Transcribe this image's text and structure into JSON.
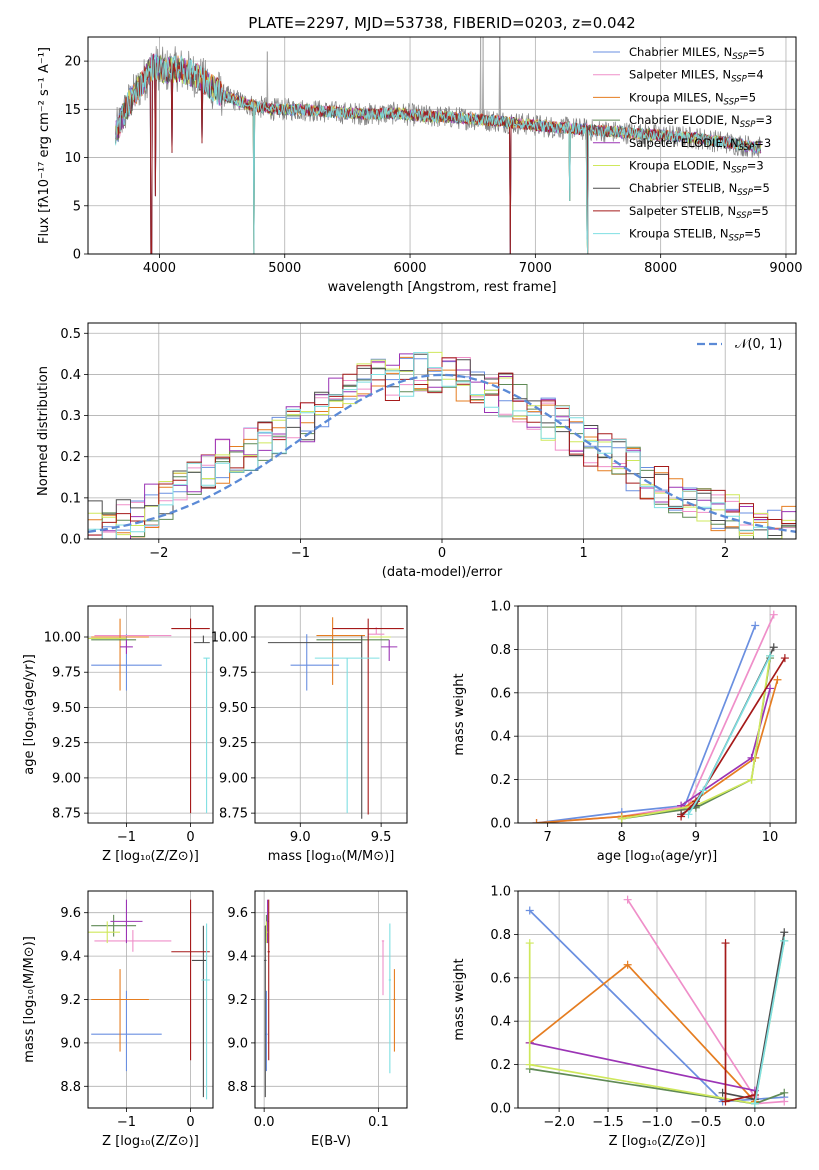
{
  "colors": [
    "#6a8fe0",
    "#ef8fc9",
    "#e57d21",
    "#5f8a55",
    "#9b34b5",
    "#cfe85c",
    "#4d4d4d",
    "#a51a1a",
    "#7fdfe2"
  ],
  "chart_data": [
    {
      "id": "spectrum",
      "type": "line",
      "title": "PLATE=2297, MJD=53738, FIBERID=0203, z=0.042",
      "xlabel": "wavelength [Angstrom, rest frame]",
      "ylabel": "Flux [fλ10⁻¹⁷ erg cm⁻² s⁻¹ A⁻¹]",
      "xlim": [
        3430,
        9080
      ],
      "ylim": [
        0,
        22.5
      ],
      "xticks": [
        "4000",
        "5000",
        "6000",
        "7000",
        "8000",
        "9000"
      ],
      "yticks": [
        "0",
        "5",
        "10",
        "15",
        "20"
      ],
      "legend_position": "upper-right",
      "series": [
        {
          "name": "Chabrier MILES, N",
          "sub": "SSP",
          "suffix": "=5"
        },
        {
          "name": "Salpeter MILES, N",
          "sub": "SSP",
          "suffix": "=4"
        },
        {
          "name": "Kroupa MILES, N",
          "sub": "SSP",
          "suffix": "=5"
        },
        {
          "name": "Chabrier ELODIE, N",
          "sub": "SSP",
          "suffix": "=3"
        },
        {
          "name": "Salpeter ELODIE, N",
          "sub": "SSP",
          "suffix": "=3"
        },
        {
          "name": "Kroupa ELODIE, N",
          "sub": "SSP",
          "suffix": "=3"
        },
        {
          "name": "Chabrier STELIB, N",
          "sub": "SSP",
          "suffix": "=5"
        },
        {
          "name": "Salpeter STELIB, N",
          "sub": "SSP",
          "suffix": "=5"
        },
        {
          "name": "Kroupa STELIB, N",
          "sub": "SSP",
          "suffix": "=5"
        }
      ],
      "continuum": {
        "x": [
          3650,
          3750,
          3850,
          3950,
          4050,
          4150,
          4300,
          4500,
          4700,
          4900,
          5100,
          5300,
          5500,
          5700,
          5900,
          6100,
          6300,
          6500,
          6700,
          6900,
          7100,
          7300,
          7500,
          7700,
          7900,
          8100,
          8300,
          8500,
          8700,
          8800
        ],
        "y": [
          12.5,
          15.5,
          17.5,
          19.5,
          19.0,
          19.2,
          18.5,
          16.5,
          15.5,
          15.0,
          15.0,
          14.8,
          14.6,
          14.5,
          14.6,
          14.3,
          14.2,
          14.0,
          13.8,
          13.5,
          13.2,
          13.0,
          12.8,
          12.6,
          12.4,
          12.2,
          12.0,
          11.6,
          11.2,
          11.0
        ]
      },
      "dips": [
        {
          "x": 3935,
          "y": 0.0
        },
        {
          "x": 3968,
          "y": 6.0
        },
        {
          "x": 4100,
          "y": 10.5
        },
        {
          "x": 4340,
          "y": 11.5
        },
        {
          "x": 4755,
          "y": 0.0
        },
        {
          "x": 6800,
          "y": 0.0
        },
        {
          "x": 7275,
          "y": 5.5
        },
        {
          "x": 7420,
          "y": 0.0
        },
        {
          "x": 7410,
          "y": 1.5
        }
      ],
      "spikes": [
        {
          "x": 6563,
          "y": 22.5
        },
        {
          "x": 6583,
          "y": 22.5
        },
        {
          "x": 6716,
          "y": 22.5
        },
        {
          "x": 4861,
          "y": 21.0
        }
      ]
    },
    {
      "id": "residuals",
      "type": "line",
      "xlabel": "(data-model)/error",
      "ylabel": "Normed distribution",
      "xlim": [
        -2.5,
        2.5
      ],
      "ylim": [
        0,
        0.525
      ],
      "xticks": [
        "−2",
        "−1",
        "0",
        "1",
        "2"
      ],
      "yticks": [
        "0.0",
        "0.1",
        "0.2",
        "0.3",
        "0.4",
        "0.5"
      ],
      "legend": "𝒩(0, 1)",
      "legend_position": "upper-right",
      "bin_width": 0.1,
      "bin_start": -2.5,
      "hist_center": [
        0.04,
        0.04,
        0.05,
        0.06,
        0.08,
        0.1,
        0.13,
        0.15,
        0.17,
        0.19,
        0.2,
        0.22,
        0.24,
        0.25,
        0.27,
        0.29,
        0.31,
        0.34,
        0.36,
        0.38,
        0.39,
        0.39,
        0.4,
        0.41,
        0.4,
        0.4,
        0.39,
        0.38,
        0.36,
        0.35,
        0.33,
        0.31,
        0.29,
        0.27,
        0.25,
        0.23,
        0.21,
        0.19,
        0.17,
        0.15,
        0.13,
        0.11,
        0.09,
        0.08,
        0.07,
        0.06,
        0.05,
        0.04,
        0.03,
        0.03
      ]
    },
    {
      "id": "age-vs-Z",
      "type": "scatter",
      "xlabel": "Z [log₁₀(Z/Z⊙)]",
      "ylabel": "age  [log₁₀(age/yr)]",
      "xlim": [
        -1.6,
        0.35
      ],
      "ylim": [
        8.68,
        10.22
      ],
      "xticks": [
        "−1",
        "0"
      ],
      "xtick_values": [
        -1,
        0
      ],
      "yticks": [
        "8.75",
        "9.00",
        "9.25",
        "9.50",
        "9.75",
        "10.00"
      ],
      "points": [
        {
          "x": -1.0,
          "y": 9.8,
          "xerr": [
            0.55,
            0.55
          ],
          "yerr": [
            0.18,
            0.22
          ]
        },
        {
          "x": -0.9,
          "y": 10.01,
          "xerr": [
            0.6,
            0.6
          ],
          "yerr": [
            0.0,
            0.0
          ]
        },
        {
          "x": -1.1,
          "y": 10.0,
          "xerr": [
            0.45,
            0.45
          ],
          "yerr": [
            0.38,
            0.13
          ]
        },
        {
          "x": -1.2,
          "y": 9.98,
          "xerr": [
            0.35,
            0.35
          ],
          "yerr": [
            0.0,
            0.0
          ]
        },
        {
          "x": -1.0,
          "y": 9.93,
          "xerr": [
            0.1,
            0.1
          ],
          "yerr": [
            0.05,
            0.05
          ]
        },
        {
          "x": -1.3,
          "y": 9.99,
          "xerr": [
            0.3,
            0.3
          ],
          "yerr": [
            0.0,
            0.0
          ]
        },
        {
          "x": 0.2,
          "y": 9.96,
          "xerr": [
            0.15,
            0.1
          ],
          "yerr": [
            0.0,
            0.05
          ]
        },
        {
          "x": 0.0,
          "y": 10.06,
          "xerr": [
            0.3,
            0.3
          ],
          "yerr": [
            1.31,
            0.07
          ]
        },
        {
          "x": 0.25,
          "y": 9.85,
          "xerr": [
            0.05,
            0.05
          ],
          "yerr": [
            1.1,
            0.0
          ]
        }
      ]
    },
    {
      "id": "age-vs-mass",
      "type": "scatter",
      "xlabel": "mass [log₁₀(M/M⊙)]",
      "ylabel": "",
      "xlim": [
        8.72,
        9.66
      ],
      "ylim": [
        8.68,
        10.22
      ],
      "xticks": [
        "9.0",
        "9.5"
      ],
      "xtick_values": [
        9.0,
        9.5
      ],
      "yticks": [
        "8.75",
        "9.00",
        "9.25",
        "9.50",
        "9.75",
        "10.00"
      ],
      "points": [
        {
          "x": 9.04,
          "y": 9.8,
          "xerr": [
            0.1,
            0.2
          ],
          "yerr": [
            0.18,
            0.22
          ]
        },
        {
          "x": 9.47,
          "y": 10.02,
          "xerr": [
            0.05,
            0.05
          ],
          "yerr": [
            0.0,
            0.05
          ]
        },
        {
          "x": 9.2,
          "y": 10.01,
          "xerr": [
            0.1,
            0.2
          ],
          "yerr": [
            0.35,
            0.13
          ]
        },
        {
          "x": 9.4,
          "y": 9.98,
          "xerr": [
            0.3,
            0.15
          ],
          "yerr": [
            0.0,
            0.0
          ]
        },
        {
          "x": 9.55,
          "y": 9.93,
          "xerr": [
            0.05,
            0.05
          ],
          "yerr": [
            0.1,
            0.05
          ]
        },
        {
          "x": 9.51,
          "y": 10.0,
          "xerr": [
            0.08,
            0.05
          ],
          "yerr": [
            0.0,
            0.0
          ]
        },
        {
          "x": 9.38,
          "y": 9.96,
          "xerr": [
            0.58,
            0.0
          ],
          "yerr": [
            1.25,
            0.05
          ]
        },
        {
          "x": 9.42,
          "y": 10.06,
          "xerr": [
            0.22,
            0.22
          ],
          "yerr": [
            1.32,
            0.07
          ]
        },
        {
          "x": 9.29,
          "y": 9.85,
          "xerr": [
            0.2,
            0.2
          ],
          "yerr": [
            1.1,
            0.0
          ]
        }
      ]
    },
    {
      "id": "massweight-vs-age",
      "type": "line",
      "xlabel": "age  [log₁₀(age/yr)]",
      "ylabel": "mass weight",
      "xlim": [
        6.6,
        10.35
      ],
      "ylim": [
        0,
        1.0
      ],
      "xticks": [
        "7",
        "8",
        "9",
        "10"
      ],
      "xtick_values": [
        7,
        8,
        9,
        10
      ],
      "yticks": [
        "0.0",
        "0.2",
        "0.4",
        "0.6",
        "0.8",
        "1.0"
      ],
      "series": [
        {
          "x": [
            6.85,
            8.0,
            8.85,
            9.8
          ],
          "y": [
            0.0,
            0.05,
            0.08,
            0.91
          ]
        },
        {
          "x": [
            6.85,
            8.0,
            8.9,
            10.05
          ],
          "y": [
            0.0,
            0.03,
            0.08,
            0.96
          ]
        },
        {
          "x": [
            6.85,
            8.0,
            8.8,
            9.8,
            10.1
          ],
          "y": [
            0.0,
            0.03,
            0.06,
            0.3,
            0.66
          ]
        },
        {
          "x": [
            8.0,
            9.0,
            9.75,
            10.0
          ],
          "y": [
            0.02,
            0.07,
            0.2,
            0.76
          ]
        },
        {
          "x": [
            8.8,
            9.75,
            10.0
          ],
          "y": [
            0.08,
            0.3,
            0.62
          ]
        },
        {
          "x": [
            8.0,
            9.0,
            9.75,
            10.0
          ],
          "y": [
            0.02,
            0.08,
            0.2,
            0.77
          ]
        },
        {
          "x": [
            8.8,
            9.0,
            10.05
          ],
          "y": [
            0.04,
            0.08,
            0.81
          ]
        },
        {
          "x": [
            8.8,
            9.0,
            10.2
          ],
          "y": [
            0.03,
            0.1,
            0.76
          ]
        },
        {
          "x": [
            8.9,
            9.1,
            10.0
          ],
          "y": [
            0.04,
            0.15,
            0.77
          ]
        }
      ]
    },
    {
      "id": "mass-vs-Z",
      "type": "scatter",
      "xlabel": "Z [log₁₀(Z/Z⊙)]",
      "ylabel": "mass [log₁₀(M/M⊙)]",
      "xlim": [
        -1.6,
        0.35
      ],
      "ylim": [
        8.7,
        9.7
      ],
      "xticks": [
        "−1",
        "0"
      ],
      "xtick_values": [
        -1,
        0
      ],
      "yticks": [
        "8.8",
        "9.0",
        "9.2",
        "9.4",
        "9.6"
      ],
      "points": [
        {
          "x": -1.0,
          "y": 9.04,
          "xerr": [
            0.55,
            0.55
          ],
          "yerr": [
            0.17,
            0.2
          ]
        },
        {
          "x": -0.9,
          "y": 9.47,
          "xerr": [
            0.6,
            0.6
          ],
          "yerr": [
            0.05,
            0.05
          ]
        },
        {
          "x": -1.1,
          "y": 9.2,
          "xerr": [
            0.45,
            0.45
          ],
          "yerr": [
            0.24,
            0.14
          ]
        },
        {
          "x": -1.2,
          "y": 9.54,
          "xerr": [
            0.35,
            0.35
          ],
          "yerr": [
            0.05,
            0.05
          ]
        },
        {
          "x": -1.0,
          "y": 9.56,
          "xerr": [
            0.25,
            0.25
          ],
          "yerr": [
            0.1,
            0.1
          ]
        },
        {
          "x": -1.3,
          "y": 9.51,
          "xerr": [
            0.3,
            0.2
          ],
          "yerr": [
            0.05,
            0.05
          ]
        },
        {
          "x": 0.2,
          "y": 9.38,
          "xerr": [
            0.18,
            0.05
          ],
          "yerr": [
            0.63,
            0.16
          ]
        },
        {
          "x": 0.0,
          "y": 9.42,
          "xerr": [
            0.3,
            0.3
          ],
          "yerr": [
            0.5,
            0.24
          ]
        },
        {
          "x": 0.25,
          "y": 9.29,
          "xerr": [
            0.08,
            0.05
          ],
          "yerr": [
            0.55,
            0.26
          ]
        }
      ]
    },
    {
      "id": "mass-vs-ebv",
      "type": "scatter",
      "xlabel": "E(B-V)",
      "ylabel": "",
      "xlim": [
        -0.008,
        0.125
      ],
      "ylim": [
        8.7,
        9.7
      ],
      "xticks": [
        "0.0",
        "0.1"
      ],
      "xtick_values": [
        0.0,
        0.1
      ],
      "yticks": [
        "8.8",
        "9.0",
        "9.2",
        "9.4",
        "9.6"
      ],
      "points": [
        {
          "x": 0.002,
          "y": 9.04,
          "xerr": [
            0.001,
            0.001
          ],
          "yerr": [
            0.17,
            0.2
          ]
        },
        {
          "x": 0.104,
          "y": 9.47,
          "xerr": [
            0.001,
            0.001
          ],
          "yerr": [
            0.25,
            0.0
          ]
        },
        {
          "x": 0.114,
          "y": 9.2,
          "xerr": [
            0.001,
            0.001
          ],
          "yerr": [
            0.24,
            0.14
          ]
        },
        {
          "x": 0.002,
          "y": 9.54,
          "xerr": [
            0.001,
            0.001
          ],
          "yerr": [
            0.05,
            0.05
          ]
        },
        {
          "x": 0.003,
          "y": 9.56,
          "xerr": [
            0.001,
            0.001
          ],
          "yerr": [
            0.1,
            0.1
          ]
        },
        {
          "x": 0.002,
          "y": 9.51,
          "xerr": [
            0.001,
            0.001
          ],
          "yerr": [
            0.05,
            0.05
          ]
        },
        {
          "x": 0.001,
          "y": 9.38,
          "xerr": [
            0.001,
            0.001
          ],
          "yerr": [
            0.63,
            0.16
          ]
        },
        {
          "x": 0.004,
          "y": 9.42,
          "xerr": [
            0.001,
            0.001
          ],
          "yerr": [
            0.5,
            0.24
          ]
        },
        {
          "x": 0.11,
          "y": 9.29,
          "xerr": [
            0.001,
            0.001
          ],
          "yerr": [
            0.43,
            0.26
          ]
        }
      ]
    },
    {
      "id": "massweight-vs-Z",
      "type": "line",
      "xlabel": "Z [log₁₀(Z/Z⊙)]",
      "ylabel": "mass weight",
      "xlim": [
        -2.42,
        0.42
      ],
      "ylim": [
        0,
        1.0
      ],
      "xticks": [
        "−2.0",
        "−1.5",
        "−1.0",
        "−0.5",
        "0.0"
      ],
      "xtick_values": [
        -2.0,
        -1.5,
        -1.0,
        -0.5,
        0.0
      ],
      "yticks": [
        "0.0",
        "0.2",
        "0.4",
        "0.6",
        "0.8",
        "1.0"
      ],
      "series": [
        {
          "x": [
            -2.3,
            -0.33,
            0.3
          ],
          "y": [
            0.91,
            0.03,
            0.05
          ]
        },
        {
          "x": [
            -1.3,
            0.0,
            0.0,
            0.3
          ],
          "y": [
            0.96,
            0.05,
            0.02,
            0.03
          ]
        },
        {
          "x": [
            -2.3,
            -1.3,
            0.0
          ],
          "y": [
            0.3,
            0.66,
            0.03
          ]
        },
        {
          "x": [
            -2.3,
            0.0,
            0.3
          ],
          "y": [
            0.18,
            0.02,
            0.07
          ]
        },
        {
          "x": [
            -2.3,
            0.0
          ],
          "y": [
            0.3,
            0.08
          ]
        },
        {
          "x": [
            -2.3,
            -2.3,
            0.0,
            0.3
          ],
          "y": [
            0.76,
            0.2,
            0.02,
            0.77
          ]
        },
        {
          "x": [
            -0.33,
            0.0,
            0.3
          ],
          "y": [
            0.07,
            0.04,
            0.81
          ]
        },
        {
          "x": [
            -0.3,
            -0.3,
            0.0
          ],
          "y": [
            0.76,
            0.03,
            0.06
          ]
        },
        {
          "x": [
            0.0,
            0.3
          ],
          "y": [
            0.02,
            0.77
          ]
        }
      ]
    }
  ]
}
